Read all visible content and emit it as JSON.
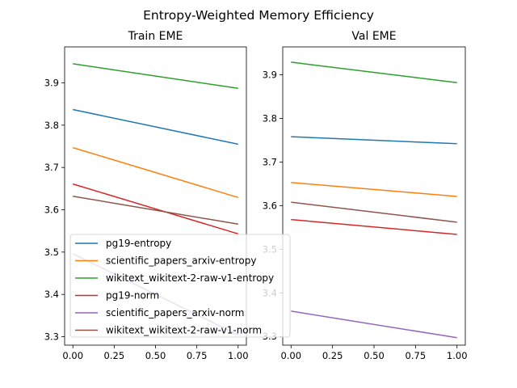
{
  "figure_title": "Entropy-Weighted Memory Efficiency",
  "chart_data": [
    {
      "type": "line",
      "title": "Train EME",
      "xlabel": "",
      "ylabel": "",
      "xlim": [
        -0.05,
        1.05
      ],
      "ylim": [
        3.28,
        3.985
      ],
      "xticks": [
        "0.00",
        "0.25",
        "0.50",
        "0.75",
        "1.00"
      ],
      "yticks": [
        "3.3",
        "3.4",
        "3.5",
        "3.6",
        "3.7",
        "3.8",
        "3.9"
      ],
      "x": [
        0,
        1
      ],
      "legend_position": "lower-left",
      "series": [
        {
          "name": "pg19-entropy",
          "color": "#1f77b4",
          "values": [
            3.837,
            3.755
          ]
        },
        {
          "name": "scientific_papers_arxiv-entropy",
          "color": "#ff7f0e",
          "values": [
            3.747,
            3.629
          ]
        },
        {
          "name": "wikitext_wikitext-2-raw-v1-entropy",
          "color": "#2ca02c",
          "values": [
            3.945,
            3.887
          ]
        },
        {
          "name": "pg19-norm",
          "color": "#d62728",
          "values": [
            3.661,
            3.543
          ]
        },
        {
          "name": "scientific_papers_arxiv-norm",
          "color": "#9467bd",
          "values": [
            3.496,
            3.304
          ]
        },
        {
          "name": "wikitext_wikitext-2-raw-v1-norm",
          "color": "#8c564b",
          "values": [
            3.632,
            3.566
          ]
        }
      ]
    },
    {
      "type": "line",
      "title": "Val EME",
      "xlabel": "",
      "ylabel": "",
      "xlim": [
        -0.05,
        1.05
      ],
      "ylim": [
        3.28,
        3.964
      ],
      "xticks": [
        "0.00",
        "0.25",
        "0.50",
        "0.75",
        "1.00"
      ],
      "yticks": [
        "3.3",
        "3.4",
        "3.5",
        "3.6",
        "3.7",
        "3.8",
        "3.9"
      ],
      "x": [
        0,
        1
      ],
      "series": [
        {
          "name": "pg19-entropy",
          "color": "#1f77b4",
          "values": [
            3.758,
            3.742
          ]
        },
        {
          "name": "scientific_papers_arxiv-entropy",
          "color": "#ff7f0e",
          "values": [
            3.653,
            3.621
          ]
        },
        {
          "name": "wikitext_wikitext-2-raw-v1-entropy",
          "color": "#2ca02c",
          "values": [
            3.929,
            3.882
          ]
        },
        {
          "name": "pg19-norm",
          "color": "#d62728",
          "values": [
            3.568,
            3.534
          ]
        },
        {
          "name": "scientific_papers_arxiv-norm",
          "color": "#9467bd",
          "values": [
            3.358,
            3.297
          ]
        },
        {
          "name": "wikitext_wikitext-2-raw-v1-norm",
          "color": "#8c564b",
          "values": [
            3.608,
            3.562
          ]
        }
      ]
    }
  ]
}
